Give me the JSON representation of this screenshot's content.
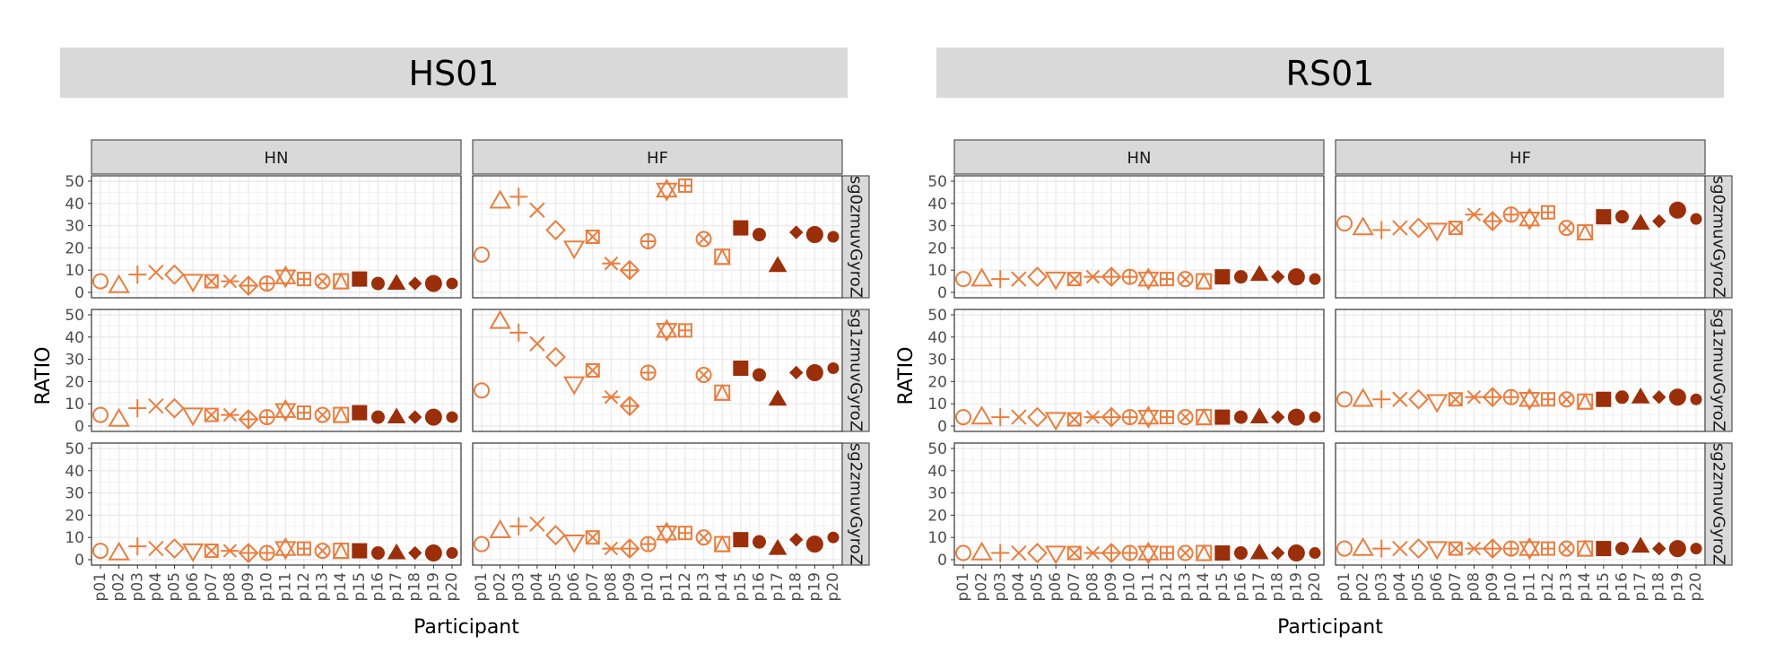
{
  "ylabel": "RATIO",
  "xlabel": "Participant",
  "participants": [
    "p01",
    "p02",
    "p03",
    "p04",
    "p05",
    "p06",
    "p07",
    "p08",
    "p09",
    "p10",
    "p11",
    "p12",
    "p13",
    "p14",
    "p15",
    "p16",
    "p17",
    "p18",
    "p19",
    "p20"
  ],
  "shapes": [
    "circle-open",
    "triangle-open",
    "plus",
    "cross",
    "diamond-open",
    "triangle-down-open",
    "square-cross",
    "asterisk",
    "diamond-plus",
    "circle-plus",
    "star-of-david",
    "square-plus",
    "circle-cross",
    "square-triangle",
    "square-filled",
    "circle-filled",
    "triangle-filled",
    "diamond-filled",
    "circle-filled-large",
    "circle-filled-small"
  ],
  "colors": {
    "light": "#E87D3E",
    "dark": "#9B2F0A",
    "panel_bg": "#FFFFFF",
    "strip_bg": "#D9D9D9",
    "grid": "#EBEBEB"
  },
  "chart_data": [
    {
      "type": "scatter",
      "title": "HS01",
      "columns": [
        "HN",
        "HF"
      ],
      "rows": [
        "sg0zmuvGyroZ",
        "sg1zmuvGyroZ",
        "sg2zmuvGyroZ"
      ],
      "ylim": [
        0,
        50
      ],
      "yticks": [
        0,
        10,
        20,
        30,
        40,
        50
      ],
      "panels": {
        "HN": {
          "sg0zmuvGyroZ": [
            5,
            3,
            8,
            9,
            8,
            5,
            5,
            5,
            3,
            4,
            7,
            6,
            5,
            5,
            6,
            4,
            4,
            4,
            4,
            4
          ],
          "sg1zmuvGyroZ": [
            5,
            3,
            8,
            9,
            8,
            5,
            5,
            5,
            3,
            4,
            7,
            6,
            5,
            5,
            6,
            4,
            4,
            4,
            4,
            4
          ],
          "sg2zmuvGyroZ": [
            4,
            3,
            6,
            5,
            5,
            4,
            4,
            4,
            3,
            3,
            5,
            5,
            4,
            4,
            4,
            3,
            3,
            3,
            3,
            3
          ]
        },
        "HF": {
          "sg0zmuvGyroZ": [
            17,
            41,
            43,
            37,
            28,
            20,
            25,
            13,
            10,
            23,
            46,
            48,
            24,
            16,
            29,
            26,
            12,
            27,
            26,
            25
          ],
          "sg1zmuvGyroZ": [
            16,
            47,
            42,
            37,
            31,
            19,
            25,
            13,
            9,
            24,
            43,
            43,
            23,
            15,
            26,
            23,
            12,
            24,
            24,
            26
          ],
          "sg2zmuvGyroZ": [
            7,
            13,
            15,
            16,
            11,
            8,
            10,
            5,
            5,
            7,
            12,
            12,
            10,
            7,
            9,
            8,
            5,
            9,
            7,
            10
          ]
        }
      }
    },
    {
      "type": "scatter",
      "title": "RS01",
      "columns": [
        "HN",
        "HF"
      ],
      "rows": [
        "sg0zmuvGyroZ",
        "sg1zmuvGyroZ",
        "sg2zmuvGyroZ"
      ],
      "ylim": [
        0,
        50
      ],
      "yticks": [
        0,
        10,
        20,
        30,
        40,
        50
      ],
      "panels": {
        "HN": {
          "sg0zmuvGyroZ": [
            6,
            6,
            6,
            6,
            7,
            6,
            6,
            7,
            7,
            7,
            6,
            6,
            6,
            5,
            7,
            7,
            8,
            7,
            7,
            6
          ],
          "sg1zmuvGyroZ": [
            4,
            4,
            4,
            4,
            4,
            3,
            3,
            4,
            4,
            4,
            4,
            4,
            4,
            4,
            4,
            4,
            4,
            4,
            4,
            4
          ],
          "sg2zmuvGyroZ": [
            3,
            3,
            3,
            3,
            3,
            3,
            3,
            3,
            3,
            3,
            3,
            3,
            3,
            3,
            3,
            3,
            3,
            3,
            3,
            3
          ]
        },
        "HF": {
          "sg0zmuvGyroZ": [
            31,
            29,
            28,
            29,
            29,
            28,
            29,
            35,
            32,
            35,
            33,
            36,
            29,
            27,
            34,
            34,
            31,
            32,
            37,
            33
          ],
          "sg1zmuvGyroZ": [
            12,
            12,
            12,
            12,
            12,
            11,
            12,
            13,
            13,
            13,
            12,
            12,
            12,
            11,
            12,
            13,
            13,
            13,
            13,
            12
          ],
          "sg2zmuvGyroZ": [
            5,
            5,
            5,
            5,
            5,
            5,
            5,
            5,
            5,
            5,
            5,
            5,
            5,
            5,
            5,
            5,
            6,
            5,
            5,
            5
          ]
        }
      }
    }
  ]
}
